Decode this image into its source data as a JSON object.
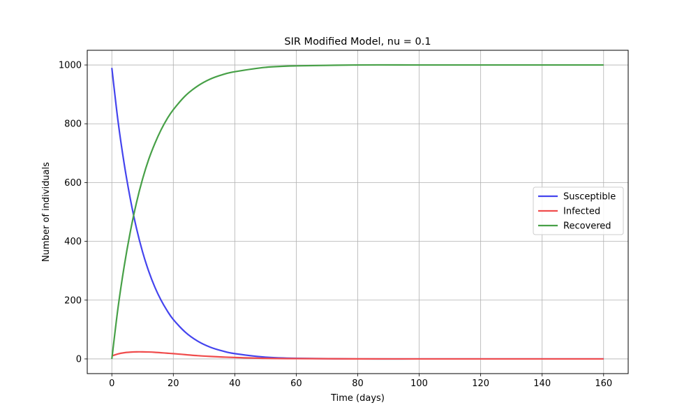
{
  "chart_data": {
    "type": "line",
    "title": "SIR Modified Model, nu = 0.1",
    "xlabel": "Time (days)",
    "ylabel": "Number of individuals",
    "xlim": [
      -8,
      168
    ],
    "ylim": [
      -50,
      1050
    ],
    "x_ticks": [
      0,
      20,
      40,
      60,
      80,
      100,
      120,
      140,
      160
    ],
    "y_ticks": [
      0,
      200,
      400,
      600,
      800,
      1000
    ],
    "grid": true,
    "legend_position": "center-right",
    "x": [
      0,
      2,
      4,
      6,
      8,
      10,
      12,
      14,
      16,
      18,
      20,
      24,
      28,
      32,
      36,
      40,
      50,
      60,
      80,
      100,
      120,
      140,
      160
    ],
    "series": [
      {
        "name": "Susceptible",
        "color": "#4444ee",
        "values": [
          990,
          810,
          665,
          545,
          445,
          364,
          298,
          244,
          200,
          164,
          134,
          90,
          60,
          40,
          27,
          18,
          6,
          2,
          0,
          0,
          0,
          0,
          0
        ]
      },
      {
        "name": "Infected",
        "color": "#f04c4c",
        "values": [
          10,
          17,
          21,
          23,
          24,
          24,
          23.5,
          22.5,
          21,
          19.5,
          18,
          14.5,
          11,
          8.5,
          6.5,
          5,
          2,
          1,
          0.2,
          0,
          0,
          0,
          0
        ]
      },
      {
        "name": "Recovered",
        "color": "#47a047",
        "values": [
          0,
          173,
          314,
          432,
          531,
          612,
          679,
          733,
          779,
          817,
          848,
          896,
          929,
          952,
          967,
          977,
          992,
          997,
          1000,
          1000,
          1000,
          1000,
          1000
        ]
      }
    ]
  }
}
